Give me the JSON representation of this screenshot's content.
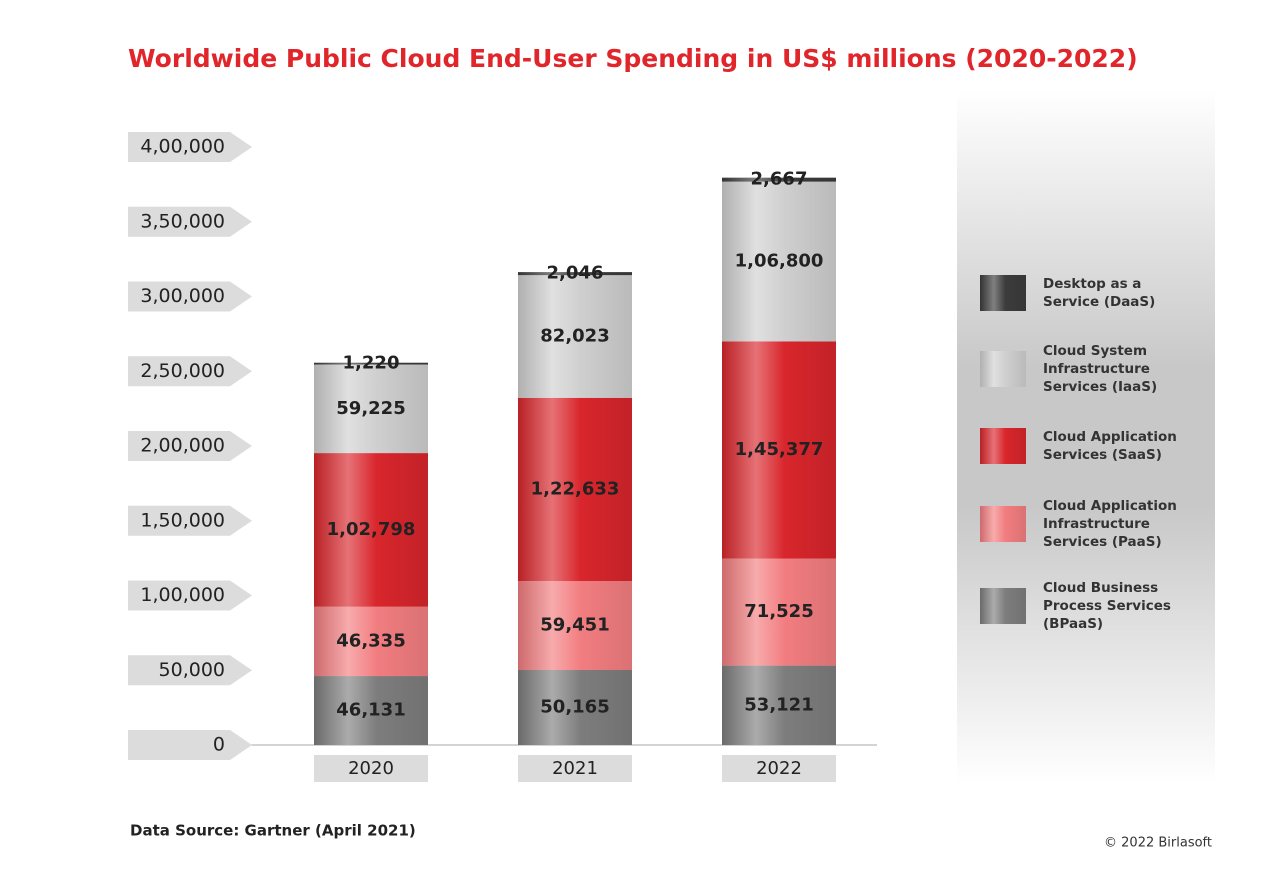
{
  "chart_data": {
    "type": "bar",
    "stacked": true,
    "title": "Worldwide Public Cloud End-User Spending in US$ millions (2020-2022)",
    "categories": [
      "2020",
      "2021",
      "2022"
    ],
    "series": [
      {
        "name": "Cloud Business Process Services (BPaaS)",
        "color": "#7d7d7d",
        "values": [
          46131,
          50165,
          53121
        ],
        "value_labels": [
          "46,131",
          "50,165",
          "53,121"
        ]
      },
      {
        "name": "Cloud Application Infrastructure Services (PaaS)",
        "color": "#f27d80",
        "values": [
          46335,
          59451,
          71525
        ],
        "value_labels": [
          "46,335",
          "59,451",
          "71,525"
        ]
      },
      {
        "name": "Cloud Application Services (SaaS)",
        "color": "#d8262c",
        "values": [
          102798,
          122633,
          145377
        ],
        "value_labels": [
          "1,02,798",
          "1,22,633",
          "1,45,377"
        ]
      },
      {
        "name": "Cloud System Infrastructure Services (IaaS)",
        "color": "#cfcfcf",
        "values": [
          59225,
          82023,
          106800
        ],
        "value_labels": [
          "59,225",
          "82,023",
          "1,06,800"
        ]
      },
      {
        "name": "Desktop as a Service (DaaS)",
        "color": "#3c3c3c",
        "values": [
          1220,
          2046,
          2667
        ],
        "value_labels": [
          "1,220",
          "2,046",
          "2,667"
        ]
      }
    ],
    "ylim": [
      0,
      400000
    ],
    "yticks": [
      0,
      {
        "value": 50000,
        "label": "50,000"
      },
      {
        "value": 100000,
        "label": "1,00,000"
      },
      {
        "value": 150000,
        "label": "1,50,000"
      },
      {
        "value": 200000,
        "label": "2,00,000"
      },
      {
        "value": 250000,
        "label": "2,50,000"
      },
      {
        "value": 300000,
        "label": "3,00,000"
      },
      {
        "value": 350000,
        "label": "3,50,000"
      },
      {
        "value": 400000,
        "label": "4,00,000"
      }
    ],
    "source": "Data Source: Gartner (April 2021)",
    "credit": "© 2022 Birlasoft"
  }
}
